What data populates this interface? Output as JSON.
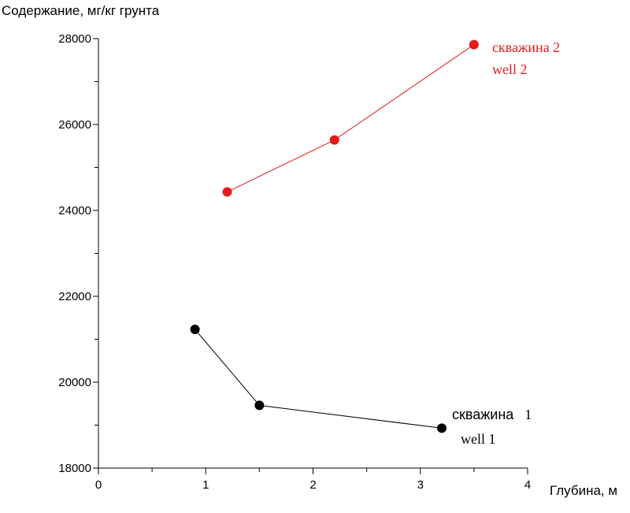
{
  "chart_data": {
    "type": "line",
    "ylabel": "Содержание, мг/кг грунта",
    "xlabel": "Глубина, м",
    "xlim": [
      0,
      4
    ],
    "ylim": [
      18000,
      28000
    ],
    "x_ticks": [
      "0",
      "1",
      "2",
      "3",
      "4"
    ],
    "y_ticks": [
      "18000",
      "20000",
      "22000",
      "24000",
      "26000",
      "28000"
    ],
    "grid": false,
    "series": [
      {
        "name": "скважина 1 / well 1",
        "label_ru": "скважина",
        "label_ru_num": "1",
        "label_en": "well 1",
        "color": "#000000",
        "points": [
          {
            "x": 0.9,
            "y": 21230
          },
          {
            "x": 1.5,
            "y": 19460
          },
          {
            "x": 3.2,
            "y": 18930
          }
        ]
      },
      {
        "name": "скважина 2 / well 2",
        "label_ru": "скважина 2",
        "label_en": "well 2",
        "color": "#e41a1c",
        "points": [
          {
            "x": 1.2,
            "y": 24430
          },
          {
            "x": 2.2,
            "y": 25640
          },
          {
            "x": 3.5,
            "y": 27860
          }
        ]
      }
    ]
  }
}
